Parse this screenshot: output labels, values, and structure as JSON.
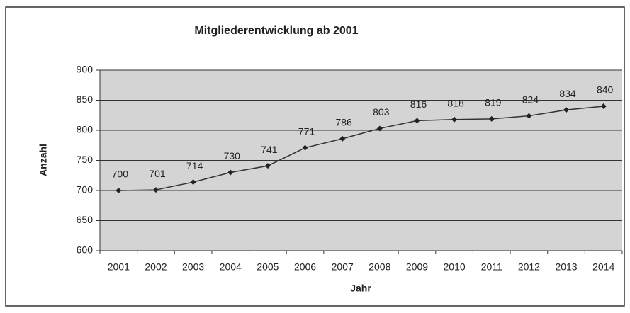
{
  "chart_data": {
    "type": "line",
    "title": "Mitgliederentwicklung ab 2001",
    "x_label": "Jahr",
    "y_label": "Anzahl",
    "categories": [
      "2001",
      "2002",
      "2003",
      "2004",
      "2005",
      "2006",
      "2007",
      "2008",
      "2009",
      "2010",
      "2011",
      "2012",
      "2013",
      "2014"
    ],
    "values": [
      700,
      701,
      714,
      730,
      741,
      771,
      786,
      803,
      816,
      818,
      819,
      824,
      834,
      840
    ],
    "color": "#333333",
    "ylim": [
      600,
      900
    ],
    "yticks": [
      600,
      650,
      700,
      750,
      800,
      850,
      900
    ],
    "grid": true
  }
}
